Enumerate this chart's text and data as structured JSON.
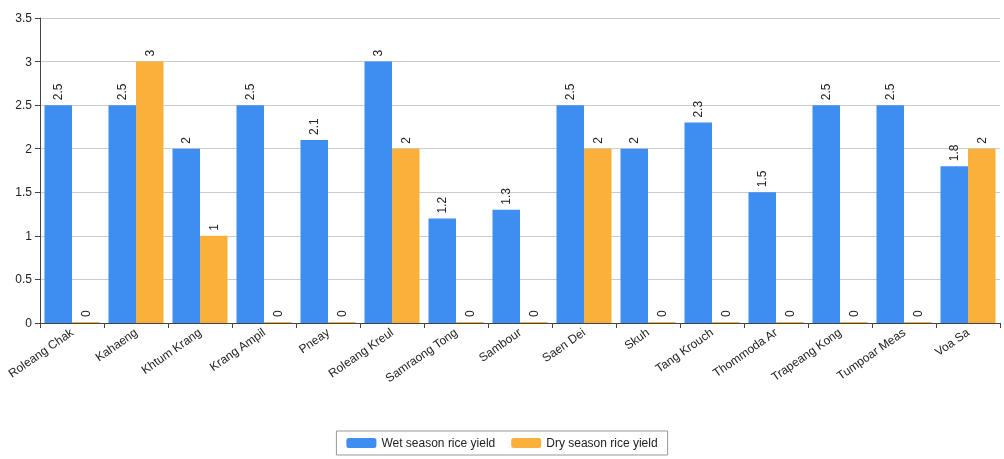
{
  "chart_data": {
    "type": "bar",
    "categories": [
      "Roleang Chak",
      "Kahaeng",
      "Khtum Krang",
      "Krang Ampil",
      "Pneay",
      "Roleang Kreul",
      "Samraong Tong",
      "Sambour",
      "Saen Dei",
      "Skuh",
      "Tang Krouch",
      "Thommoda Ar",
      "Trapeang Kong",
      "Tumpoar Meas",
      "Voa Sa"
    ],
    "series": [
      {
        "name": "Wet season rice yield",
        "color": "#3d8ef0",
        "values": [
          2.5,
          2.5,
          2,
          2.5,
          2.1,
          3,
          1.2,
          1.3,
          2.5,
          2,
          2.3,
          1.5,
          2.5,
          2.5,
          1.8
        ]
      },
      {
        "name": "Dry season rice yield",
        "color": "#fbb03b",
        "values": [
          0,
          3,
          1,
          0,
          0,
          2,
          0,
          0,
          2,
          0,
          0,
          0,
          0,
          0,
          2
        ]
      }
    ],
    "ylim": [
      0,
      3.5
    ],
    "yticks": [
      0,
      0.5,
      1,
      1.5,
      2,
      2.5,
      3,
      3.5
    ],
    "grid": "y",
    "legend": "bottom",
    "data_labels": true
  }
}
